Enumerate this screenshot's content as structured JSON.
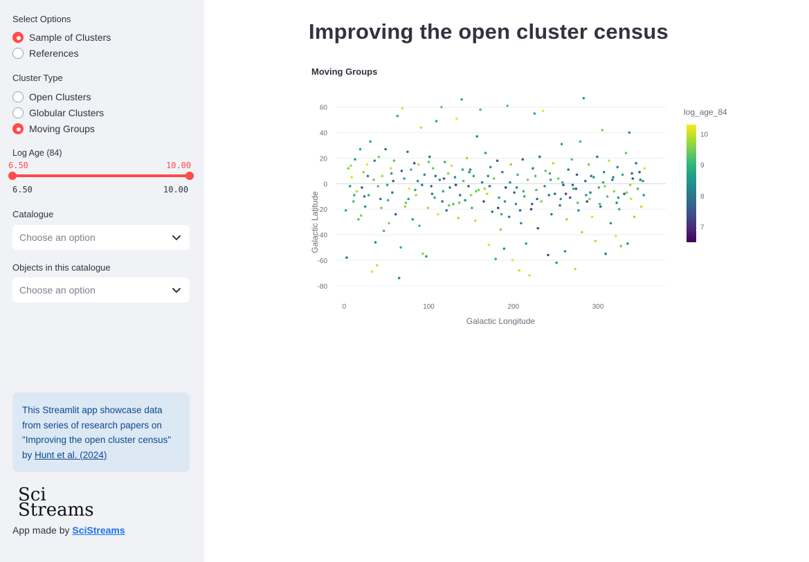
{
  "sidebar": {
    "select_options_label": "Select Options",
    "options": [
      {
        "label": "Sample of Clusters",
        "selected": true
      },
      {
        "label": "References",
        "selected": false
      }
    ],
    "cluster_type_label": "Cluster Type",
    "cluster_types": [
      {
        "label": "Open Clusters",
        "selected": false
      },
      {
        "label": "Globular Clusters",
        "selected": false
      },
      {
        "label": "Moving Groups",
        "selected": true
      }
    ],
    "log_age": {
      "label": "Log Age (84)",
      "low": "6.50",
      "high": "10.00",
      "min": "6.50",
      "max": "10.00"
    },
    "catalogue": {
      "label": "Catalogue",
      "placeholder": "Choose an option"
    },
    "objects": {
      "label": "Objects in this catalogue",
      "placeholder": "Choose an option"
    },
    "info": {
      "line1": "This Streamlit app showcase data",
      "line2": "from series of research papers on",
      "line3": "\"Improving the open cluster census\"",
      "line4_prefix": "by ",
      "link": "Hunt et al. (2024)"
    },
    "logo": {
      "line1": "Sci",
      "line2": "Streams"
    },
    "made_by_prefix": "App made by ",
    "made_by_link": "SciStreams"
  },
  "main": {
    "title": "Improving the open cluster census",
    "chart_heading": "Moving Groups"
  },
  "colors": {
    "accent": "#ff4b4b",
    "sidebar_bg": "#f0f2f6",
    "info_bg": "#dde8f5",
    "info_text": "#0b4a8e"
  },
  "chart_data": {
    "type": "scatter",
    "xlabel": "Galactic Longitude",
    "ylabel": "Galactic Latitude",
    "xlim": [
      -10,
      380
    ],
    "ylim": [
      -85,
      68
    ],
    "xticks": [
      0,
      100,
      200,
      300
    ],
    "yticks": [
      60,
      40,
      20,
      0,
      -20,
      -40,
      -60,
      -80
    ],
    "colorbar": {
      "title": "log_age_84",
      "range": [
        6.5,
        10.3
      ],
      "ticks": [
        10,
        9,
        8,
        7
      ],
      "colorscale": "viridis"
    },
    "grid": true,
    "points": [
      [
        2,
        -21,
        8.8
      ],
      [
        3,
        -58,
        8.2
      ],
      [
        5,
        12,
        9.6
      ],
      [
        7,
        -2,
        8.5
      ],
      [
        9,
        5,
        10.1
      ],
      [
        11,
        -14,
        9.2
      ],
      [
        13,
        19,
        8.6
      ],
      [
        15,
        -6,
        9.9
      ],
      [
        17,
        -28,
        9.3
      ],
      [
        19,
        27,
        8.9
      ],
      [
        21,
        -3,
        7.6
      ],
      [
        23,
        9,
        9.7
      ],
      [
        25,
        -18,
        8.4
      ],
      [
        27,
        15,
        10.2
      ],
      [
        29,
        -9,
        9.0
      ],
      [
        31,
        33,
        8.7
      ],
      [
        33,
        -69,
        10.1
      ],
      [
        35,
        3,
        9.4
      ],
      [
        37,
        -46,
        8.3
      ],
      [
        39,
        -64,
        10.0
      ],
      [
        41,
        21,
        9.5
      ],
      [
        43,
        -12,
        8.1
      ],
      [
        45,
        6,
        9.8
      ],
      [
        47,
        -37,
        9.1
      ],
      [
        49,
        27,
        7.9
      ],
      [
        51,
        -1,
        8.8
      ],
      [
        53,
        -31,
        9.6
      ],
      [
        55,
        12,
        10.0
      ],
      [
        57,
        -7,
        8.2
      ],
      [
        59,
        18,
        9.3
      ],
      [
        61,
        -24,
        7.8
      ],
      [
        63,
        53,
        8.9
      ],
      [
        65,
        -74,
        8.4
      ],
      [
        67,
        -50,
        9.0
      ],
      [
        69,
        59,
        10.1
      ],
      [
        71,
        4,
        8.7
      ],
      [
        73,
        -15,
        9.4
      ],
      [
        75,
        25,
        8.0
      ],
      [
        77,
        -4,
        10.2
      ],
      [
        79,
        11,
        9.1
      ],
      [
        81,
        -28,
        8.6
      ],
      [
        83,
        16,
        7.4
      ],
      [
        85,
        -9,
        9.8
      ],
      [
        87,
        2,
        8.5
      ],
      [
        89,
        -33,
        9.2
      ],
      [
        91,
        44,
        10.0
      ],
      [
        93,
        -55,
        9.7
      ],
      [
        95,
        7,
        8.3
      ],
      [
        97,
        -57,
        8.6
      ],
      [
        99,
        -19,
        9.9
      ],
      [
        101,
        21,
        8.1
      ],
      [
        103,
        -2,
        7.7
      ],
      [
        105,
        12,
        9.5
      ],
      [
        107,
        -11,
        8.9
      ],
      [
        109,
        49,
        8.7
      ],
      [
        111,
        -24,
        10.1
      ],
      [
        113,
        3,
        8.4
      ],
      [
        115,
        60,
        9.4
      ],
      [
        117,
        -6,
        8.8
      ],
      [
        119,
        17,
        9.0
      ],
      [
        121,
        -21,
        7.9
      ],
      [
        123,
        8,
        9.6
      ],
      [
        125,
        -3,
        8.2
      ],
      [
        127,
        14,
        10.0
      ],
      [
        129,
        -16,
        9.2
      ],
      [
        131,
        5,
        8.5
      ],
      [
        133,
        51,
        10.2
      ],
      [
        135,
        -27,
        9.8
      ],
      [
        137,
        -9,
        8.0
      ],
      [
        139,
        66,
        8.9
      ],
      [
        141,
        2,
        9.3
      ],
      [
        143,
        -13,
        8.6
      ],
      [
        145,
        20,
        9.7
      ],
      [
        147,
        -2,
        7.6
      ],
      [
        149,
        11,
        8.4
      ],
      [
        151,
        -19,
        9.1
      ],
      [
        153,
        6,
        8.8
      ],
      [
        155,
        -29,
        10.0
      ],
      [
        157,
        37,
        8.3
      ],
      [
        159,
        -5,
        9.5
      ],
      [
        161,
        58,
        9.2
      ],
      [
        163,
        1,
        8.1
      ],
      [
        165,
        -14,
        7.5
      ],
      [
        167,
        24,
        8.7
      ],
      [
        169,
        -8,
        9.9
      ],
      [
        171,
        -48,
        10.1
      ],
      [
        173,
        13,
        8.6
      ],
      [
        175,
        -22,
        8.0
      ],
      [
        177,
        4,
        9.4
      ],
      [
        179,
        -59,
        9.0
      ],
      [
        181,
        18,
        7.8
      ],
      [
        183,
        -11,
        8.8
      ],
      [
        185,
        -36,
        9.6
      ],
      [
        187,
        9,
        8.3
      ],
      [
        189,
        -51,
        8.5
      ],
      [
        191,
        -3,
        7.2
      ],
      [
        193,
        61,
        9.3
      ],
      [
        195,
        -26,
        8.2
      ],
      [
        197,
        15,
        9.7
      ],
      [
        199,
        -60,
        10.2
      ],
      [
        201,
        -7,
        7.9
      ],
      [
        203,
        -16,
        8.6
      ],
      [
        205,
        7,
        9.1
      ],
      [
        207,
        -68,
        10.0
      ],
      [
        209,
        -31,
        8.4
      ],
      [
        211,
        19,
        7.7
      ],
      [
        213,
        -10,
        8.9
      ],
      [
        215,
        -47,
        8.7
      ],
      [
        217,
        3,
        9.5
      ],
      [
        219,
        -72,
        10.1
      ],
      [
        221,
        -20,
        7.3
      ],
      [
        223,
        12,
        8.2
      ],
      [
        225,
        55,
        8.8
      ],
      [
        227,
        -5,
        9.2
      ],
      [
        229,
        -35,
        7.6
      ],
      [
        231,
        21,
        8.0
      ],
      [
        233,
        -14,
        9.6
      ],
      [
        235,
        57,
        10.2
      ],
      [
        237,
        -2,
        8.5
      ],
      [
        239,
        69,
        7.8
      ],
      [
        241,
        -56,
        7.4
      ],
      [
        243,
        8,
        9.0
      ],
      [
        245,
        -24,
        8.3
      ],
      [
        247,
        16,
        9.9
      ],
      [
        249,
        -8,
        7.9
      ],
      [
        251,
        -62,
        8.6
      ],
      [
        253,
        4,
        9.4
      ],
      [
        255,
        -17,
        8.1
      ],
      [
        257,
        31,
        8.8
      ],
      [
        259,
        -1,
        7.5
      ],
      [
        261,
        -53,
        8.4
      ],
      [
        263,
        -28,
        9.7
      ],
      [
        265,
        11,
        8.2
      ],
      [
        267,
        -11,
        7.7
      ],
      [
        269,
        19,
        9.3
      ],
      [
        271,
        -4,
        8.9
      ],
      [
        273,
        -67,
        10.0
      ],
      [
        275,
        7,
        7.6
      ],
      [
        277,
        -21,
        8.5
      ],
      [
        279,
        33,
        9.1
      ],
      [
        281,
        -38,
        9.8
      ],
      [
        283,
        67,
        8.6
      ],
      [
        285,
        2,
        8.0
      ],
      [
        287,
        -14,
        7.4
      ],
      [
        289,
        15,
        9.5
      ],
      [
        291,
        -7,
        8.3
      ],
      [
        293,
        -26,
        10.1
      ],
      [
        295,
        5,
        8.7
      ],
      [
        297,
        -45,
        9.9
      ],
      [
        299,
        21,
        8.2
      ],
      [
        301,
        -3,
        9.0
      ],
      [
        303,
        -18,
        7.8
      ],
      [
        305,
        42,
        9.6
      ],
      [
        307,
        9,
        8.4
      ],
      [
        309,
        -55,
        8.1
      ],
      [
        311,
        -10,
        9.3
      ],
      [
        313,
        18,
        10.0
      ],
      [
        315,
        -31,
        8.6
      ],
      [
        317,
        3,
        7.9
      ],
      [
        319,
        -6,
        9.7
      ],
      [
        321,
        -41,
        10.2
      ],
      [
        323,
        13,
        8.5
      ],
      [
        325,
        -20,
        9.1
      ],
      [
        327,
        -49,
        9.5
      ],
      [
        329,
        7,
        8.8
      ],
      [
        331,
        -8,
        7.6
      ],
      [
        333,
        24,
        9.4
      ],
      [
        335,
        -47,
        8.3
      ],
      [
        337,
        40,
        8.5
      ],
      [
        339,
        -12,
        10.0
      ],
      [
        341,
        4,
        7.5
      ],
      [
        343,
        -26,
        9.8
      ],
      [
        345,
        16,
        8.2
      ],
      [
        347,
        -4,
        9.2
      ],
      [
        349,
        9,
        7.7
      ],
      [
        351,
        -18,
        9.9
      ],
      [
        353,
        2,
        8.6
      ],
      [
        355,
        12,
        10.1
      ],
      [
        12,
        -9,
        9.0
      ],
      [
        28,
        6,
        8.1
      ],
      [
        44,
        -19,
        9.5
      ],
      [
        58,
        2,
        7.9
      ],
      [
        76,
        -12,
        8.8
      ],
      [
        88,
        15,
        9.9
      ],
      [
        104,
        -8,
        8.2
      ],
      [
        118,
        4,
        7.6
      ],
      [
        136,
        -15,
        9.4
      ],
      [
        148,
        9,
        8.7
      ],
      [
        166,
        -4,
        9.8
      ],
      [
        182,
        -19,
        7.5
      ],
      [
        196,
        1,
        8.4
      ],
      [
        212,
        -6,
        9.1
      ],
      [
        228,
        -12,
        7.8
      ],
      [
        244,
        3,
        8.9
      ],
      [
        262,
        -8,
        7.4
      ],
      [
        276,
        -15,
        9.3
      ],
      [
        292,
        6,
        8.0
      ],
      [
        308,
        -2,
        9.6
      ],
      [
        324,
        -11,
        8.5
      ],
      [
        340,
        8,
        7.9
      ],
      [
        20,
        -25,
        9.6
      ],
      [
        36,
        18,
        8.3
      ],
      [
        52,
        -13,
        9.0
      ],
      [
        68,
        10,
        7.7
      ],
      [
        84,
        -5,
        8.9
      ],
      [
        100,
        17,
        9.3
      ],
      [
        116,
        -14,
        8.0
      ],
      [
        132,
        -1,
        7.3
      ],
      [
        150,
        -9,
        9.7
      ],
      [
        170,
        6,
        8.5
      ],
      [
        186,
        -24,
        9.0
      ],
      [
        204,
        -3,
        8.3
      ],
      [
        222,
        -16,
        7.7
      ],
      [
        238,
        10,
        9.4
      ],
      [
        256,
        -12,
        8.6
      ],
      [
        270,
        -1,
        7.9
      ],
      [
        286,
        -9,
        8.7
      ],
      [
        302,
        -16,
        9.2
      ],
      [
        318,
        5,
        8.4
      ],
      [
        334,
        -7,
        9.6
      ],
      [
        350,
        3,
        8.1
      ],
      [
        8,
        14,
        9.8
      ],
      [
        24,
        -10,
        8.0
      ],
      [
        40,
        -2,
        9.3
      ],
      [
        56,
        8,
        8.6
      ],
      [
        72,
        -18,
        9.7
      ],
      [
        92,
        -1,
        8.3
      ],
      [
        108,
        6,
        7.9
      ],
      [
        124,
        -17,
        9.5
      ],
      [
        140,
        11,
        8.8
      ],
      [
        156,
        -6,
        9.4
      ],
      [
        172,
        -2,
        7.8
      ],
      [
        190,
        -14,
        8.6
      ],
      [
        208,
        -21,
        7.6
      ],
      [
        226,
        6,
        9.2
      ],
      [
        242,
        -9,
        8.1
      ],
      [
        258,
        1,
        9.0
      ],
      [
        274,
        -4,
        7.7
      ],
      [
        290,
        -12,
        9.6
      ],
      [
        306,
        1,
        8.9
      ],
      [
        322,
        -15,
        8.3
      ],
      [
        338,
        -1,
        9.7
      ],
      [
        354,
        -9,
        8.5
      ]
    ]
  }
}
